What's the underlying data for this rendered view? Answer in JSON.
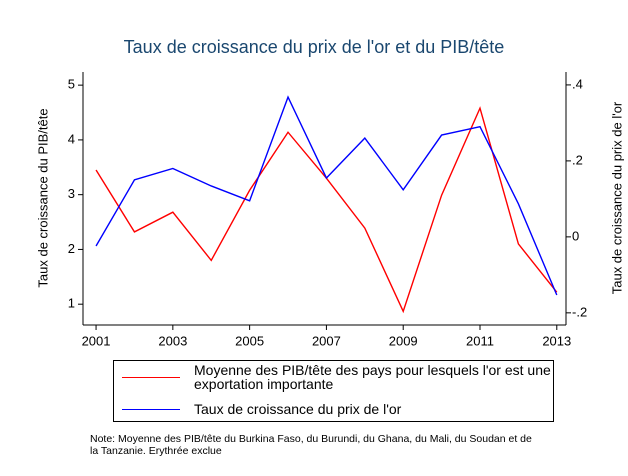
{
  "chart_data": {
    "type": "line",
    "title": "Taux de croissance du prix de l'or et du PIB/tête",
    "ylabel": "Taux de croissance du PIB/tête",
    "y2label": "Taux de croissance du prix de l'or",
    "note": "Note: Moyenne des PIB/tête du Burkina Faso, du Burundi, du Ghana, du Mali, du Soudan et de la Tanzanie. Erythrée exclue",
    "x": [
      2001,
      2002,
      2003,
      2004,
      2005,
      2006,
      2007,
      2008,
      2009,
      2010,
      2011,
      2012,
      2013
    ],
    "xlim": [
      2000.66,
      2013.24
    ],
    "xticks": [
      2001,
      2003,
      2005,
      2007,
      2009,
      2011,
      2013
    ],
    "ylim": [
      0.62,
      5.24
    ],
    "yticks": [
      1,
      2,
      3,
      4,
      5
    ],
    "y2lim": [
      -0.232,
      0.434
    ],
    "y2ticks": [
      {
        "value": -0.2,
        "label": "-.2"
      },
      {
        "value": 0,
        "label": "0"
      },
      {
        "value": 0.2,
        "label": ".2"
      },
      {
        "value": 0.4,
        "label": ".4"
      }
    ],
    "series": [
      {
        "name": "Moyenne des PIB/tête des pays pour lesquels l'or est une exportation importante",
        "color": "#ff0000",
        "values": [
          3.45,
          2.32,
          2.68,
          1.8,
          3.08,
          4.14,
          3.3,
          2.39,
          0.87,
          2.99,
          4.58,
          2.1,
          1.22
        ]
      },
      {
        "name": "Taux de croissance du prix de l'or",
        "color": "#0000ff",
        "axis": "y2",
        "values": [
          -0.024,
          0.15,
          0.18,
          0.134,
          0.095,
          0.368,
          0.155,
          0.26,
          0.124,
          0.268,
          0.29,
          0.087,
          -0.153
        ]
      }
    ]
  }
}
